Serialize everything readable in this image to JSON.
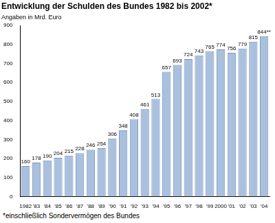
{
  "chart_data": {
    "type": "bar",
    "title": "Entwicklung der Schulden des Bundes 1982 bis 2002*",
    "subtitle": "Angaben in Mrd. Euro",
    "footnote": "*einschließlich Sondervermögen des Bundes",
    "categories": [
      "1982",
      "'83",
      "'84",
      "'85",
      "'86",
      "'87",
      "'88",
      "'89",
      "'90",
      "'91",
      "'92",
      "'93",
      "'94",
      "'95",
      "'96",
      "'97",
      "'98",
      "'99",
      "2000",
      "'01",
      "'02",
      "'03",
      "'04"
    ],
    "values": [
      160,
      178,
      190,
      204,
      215,
      228,
      246,
      254,
      306,
      348,
      408,
      461,
      513,
      657,
      693,
      724,
      743,
      765,
      774,
      756,
      779,
      815,
      844
    ],
    "value_labels": [
      "160",
      "178",
      "190",
      "204",
      "215",
      "228",
      "246",
      "254",
      "306",
      "348",
      "408",
      "461",
      "513",
      "657",
      "693",
      "724",
      "743",
      "765",
      "774",
      "756",
      "779",
      "815",
      "844**"
    ],
    "data_labels": true,
    "color": "#a9c0de",
    "ylim": [
      0,
      900
    ],
    "yticks": [
      0,
      100,
      200,
      300,
      400,
      500,
      600,
      700,
      800,
      900
    ],
    "grid": false
  }
}
